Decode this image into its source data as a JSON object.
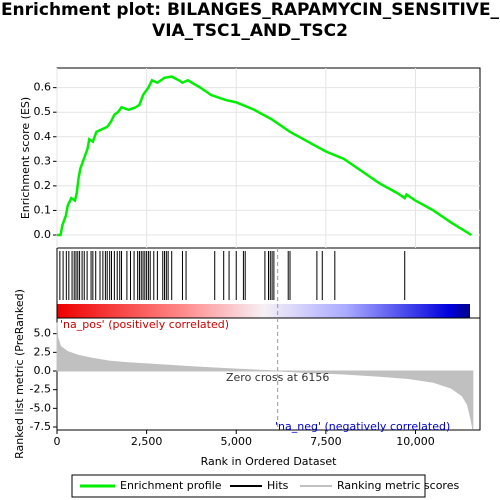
{
  "title": "Enrichment plot: BILANGES_RAPAMYCIN_SENSITIVE_VIA_TSC1_AND_TSC2",
  "chart_data": [
    {
      "type": "line",
      "ylabel": "Enrichment score (ES)",
      "xlim": [
        0,
        11800
      ],
      "ylim": [
        -0.053,
        0.68
      ],
      "yticks": [
        {
          "value": 0,
          "label": "0.0"
        },
        0.1,
        0.2,
        0.3,
        0.4,
        0.5,
        0.6
      ],
      "grid": true,
      "series": [
        {
          "name": "Enrichment profile",
          "color": "#00ee00",
          "x": [
            0,
            100,
            150,
            250,
            300,
            400,
            500,
            550,
            600,
            650,
            750,
            850,
            900,
            1000,
            1100,
            1250,
            1400,
            1500,
            1600,
            1700,
            1800,
            2000,
            2200,
            2300,
            2400,
            2550,
            2650,
            2800,
            3000,
            3200,
            3400,
            3500,
            3650,
            4000,
            4300,
            4700,
            5000,
            5500,
            6000,
            6500,
            7000,
            7500,
            8000,
            8500,
            9000,
            9500,
            9700,
            9750,
            10000,
            10500,
            11000,
            11560
          ],
          "values": [
            0,
            0.0,
            0.04,
            0.08,
            0.12,
            0.15,
            0.14,
            0.17,
            0.23,
            0.27,
            0.31,
            0.35,
            0.39,
            0.38,
            0.42,
            0.43,
            0.44,
            0.46,
            0.49,
            0.5,
            0.52,
            0.51,
            0.52,
            0.53,
            0.57,
            0.6,
            0.63,
            0.62,
            0.64,
            0.645,
            0.63,
            0.62,
            0.63,
            0.6,
            0.57,
            0.55,
            0.54,
            0.51,
            0.47,
            0.42,
            0.38,
            0.34,
            0.31,
            0.26,
            0.21,
            0.17,
            0.15,
            0.165,
            0.14,
            0.1,
            0.05,
            0.0
          ]
        }
      ]
    },
    {
      "type": "hits",
      "xlim": [
        0,
        11800
      ],
      "series": [
        {
          "name": "Hits",
          "color": "#000000",
          "x": [
            80,
            170,
            260,
            330,
            420,
            480,
            530,
            580,
            630,
            700,
            760,
            840,
            950,
            1000,
            1080,
            1200,
            1280,
            1350,
            1400,
            1470,
            1520,
            1600,
            1680,
            1750,
            1800,
            1950,
            2050,
            2150,
            2250,
            2300,
            2350,
            2400,
            2450,
            2500,
            2550,
            2600,
            2700,
            2800,
            2950,
            3000,
            3050,
            3100,
            3200,
            3500,
            3600,
            4400,
            4650,
            4800,
            5000,
            5200,
            5250,
            5800,
            5900,
            5950,
            6000,
            6050,
            6450,
            6500,
            7250,
            7400,
            7750,
            9700
          ]
        }
      ]
    },
    {
      "type": "area",
      "ylabel": "Ranked list metric (PreRanked)",
      "xlabel": "Rank in Ordered Dataset",
      "xlim": [
        0,
        11800
      ],
      "ylim": [
        -7.9,
        7.1
      ],
      "xticks": [
        0,
        {
          "value": 2500,
          "label": "2,500"
        },
        {
          "value": 5000,
          "label": "5,000"
        },
        {
          "value": 7500,
          "label": "7,500"
        },
        {
          "value": 10000,
          "label": "10,000"
        }
      ],
      "yticks": [
        -7.5,
        {
          "value": -5,
          "label": "-5.0"
        },
        -2.5,
        {
          "value": 0,
          "label": "0.0"
        },
        2.5,
        {
          "value": 5,
          "label": "5.0"
        }
      ],
      "zero_cross": 6156,
      "annotations": [
        {
          "text": "'na_pos' (positively correlated)",
          "color": "#cc0000"
        },
        {
          "text": "Zero cross at 6156",
          "color": "#333333"
        },
        {
          "text": "'na_neg' (negatively correlated)",
          "color": "#0000cc"
        }
      ],
      "series": [
        {
          "name": "Ranking metric scores",
          "color": "#c0c0c0",
          "x": [
            0,
            20,
            100,
            300,
            600,
            1000,
            1500,
            2000,
            3000,
            4000,
            5000,
            6156,
            7000,
            8000,
            9000,
            9800,
            10500,
            11000,
            11300,
            11450,
            11550,
            11600
          ],
          "values": [
            6.5,
            4.5,
            3.3,
            2.6,
            2.1,
            1.7,
            1.3,
            1.1,
            0.8,
            0.5,
            0.25,
            0,
            -0.2,
            -0.4,
            -0.7,
            -1.0,
            -1.5,
            -2.3,
            -3.3,
            -4.5,
            -6.5,
            -7.8
          ]
        }
      ]
    }
  ]
}
